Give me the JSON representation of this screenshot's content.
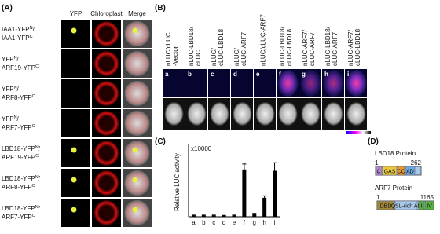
{
  "panel_a": {
    "label": "(A)",
    "columns": [
      "YFP",
      "Chloroplast",
      "Merge"
    ],
    "rows": [
      {
        "a": "IAA1-YFP",
        "a_sup": "N",
        "slash": "/",
        "b": "IAA1-YFP",
        "b_sup": "C"
      },
      {
        "a": "YFP",
        "a_sup": "N",
        "slash": "/",
        "b": "ARF19-YFP",
        "b_sup": "C"
      },
      {
        "a": "YFP",
        "a_sup": "N",
        "slash": "/",
        "b": "ARF8-YFP",
        "b_sup": "C"
      },
      {
        "a": "YFP",
        "a_sup": "N",
        "slash": "/",
        "b": "ARF7-YFP",
        "b_sup": "C"
      },
      {
        "a": "LBD18-YFP",
        "a_sup": "N",
        "slash": "/",
        "b": "ARF19-YFP",
        "b_sup": "C"
      },
      {
        "a": "LBD18-YFP",
        "a_sup": "N",
        "slash": "/",
        "b": "ARF8-YFP",
        "b_sup": "C"
      },
      {
        "a": "LBD18-YFP",
        "a_sup": "N",
        "slash": "/",
        "b": "ARF7-YFP",
        "b_sup": "C"
      }
    ]
  },
  "panel_b": {
    "label": "(B)",
    "columns": [
      [
        "nLUC/cLUC",
        "-Vector"
      ],
      [
        "nLUC-LBD18/",
        "cLUC"
      ],
      [
        "nLUC/",
        "cLUC-LBD18"
      ],
      [
        "nLUC/",
        "cLUC-ARF7"
      ],
      [
        "nLUC/cLUC-ARF7"
      ],
      [
        "nLUC-LBD18/",
        "cLUC-LBD18"
      ],
      [
        "nLUC-ARF7/",
        "cLUC-ARF7"
      ],
      [
        "nLUC-LBD18/",
        "cLUC-ARF7"
      ],
      [
        "nLUC-ARF7/",
        "cLUC-LBD18"
      ]
    ],
    "panel_letters": [
      "a",
      "b",
      "c",
      "d",
      "e",
      "f",
      "g",
      "h",
      "i"
    ]
  },
  "chart_data": {
    "type": "bar",
    "panel_label": "(C)",
    "y_label": "Relative LUC activity",
    "multiplier": "x10000",
    "categories": [
      "a",
      "b",
      "c",
      "d",
      "e",
      "f",
      "g",
      "h",
      "i"
    ],
    "values": [
      0.1,
      0.1,
      0.1,
      0.08,
      0.1,
      3.5,
      0.2,
      1.4,
      3.4
    ],
    "errors": [
      0.02,
      0.02,
      0.02,
      0.02,
      0.02,
      0.4,
      0.05,
      0.15,
      0.6
    ],
    "color": "#000000",
    "ylim": [
      0,
      5
    ]
  },
  "panel_d": {
    "label": "(D)",
    "proteins": [
      {
        "name": "LBD18 Protein",
        "start": "1",
        "end": "262",
        "domains": [
          "C",
          "GAS",
          "CC",
          "AD"
        ]
      },
      {
        "name": "ARF7 Protein",
        "start": "1",
        "end": "1165",
        "domains": [
          "DBD",
          "QSL-rich AD",
          "III",
          "IV"
        ]
      }
    ]
  }
}
